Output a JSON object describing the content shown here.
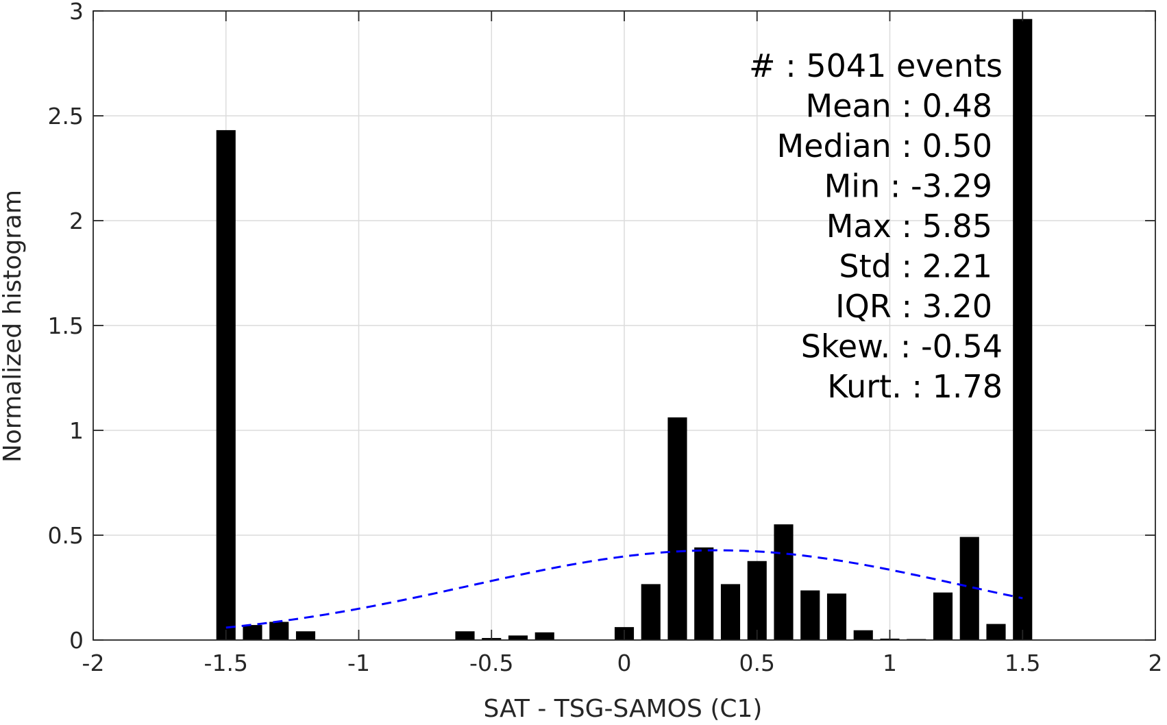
{
  "chart_data": {
    "type": "bar",
    "xlabel": "SAT - TSG-SAMOS (C1)",
    "ylabel": "Normalized histogram",
    "xlim": [
      -2,
      2
    ],
    "ylim": [
      0,
      3
    ],
    "xticks": [
      "-2",
      "-1.5",
      "-1",
      "-0.5",
      "0",
      "0.5",
      "1",
      "1.5",
      "2"
    ],
    "yticks": [
      "0",
      "0.5",
      "1",
      "1.5",
      "2",
      "2.5",
      "3"
    ],
    "grid": true,
    "bin_width": 0.1,
    "bar_color": "#000000",
    "x": [
      -1.5,
      -1.4,
      -1.3,
      -1.2,
      -1.1,
      -1.0,
      -0.9,
      -0.8,
      -0.7,
      -0.6,
      -0.5,
      -0.4,
      -0.3,
      -0.2,
      -0.1,
      0.0,
      0.1,
      0.2,
      0.3,
      0.4,
      0.5,
      0.6,
      0.7,
      0.8,
      0.9,
      1.0,
      1.1,
      1.2,
      1.3,
      1.4,
      1.5
    ],
    "values": [
      2.43,
      0.07,
      0.085,
      0.04,
      0,
      0,
      0,
      0,
      0,
      0.04,
      0.008,
      0.02,
      0.035,
      0,
      0,
      0.06,
      0.265,
      1.06,
      0.44,
      0.265,
      0.375,
      0.55,
      0.235,
      0.22,
      0.045,
      0.005,
      0.003,
      0.225,
      0.49,
      0.075,
      2.96
    ],
    "fit_curve": {
      "style": "dashed",
      "color": "#0000ff",
      "mean": 0.35,
      "std": 0.93,
      "peak": 0.428,
      "x_range": [
        -1.5,
        1.5
      ]
    },
    "annotation": [
      "#  : 5041 events",
      "Mean : 0.48",
      "Median : 0.50",
      "Min : -3.29",
      "Max : 5.85",
      "Std : 2.21",
      "IQR : 3.20",
      "Skew. : -0.54",
      "Kurt. : 1.78"
    ]
  }
}
